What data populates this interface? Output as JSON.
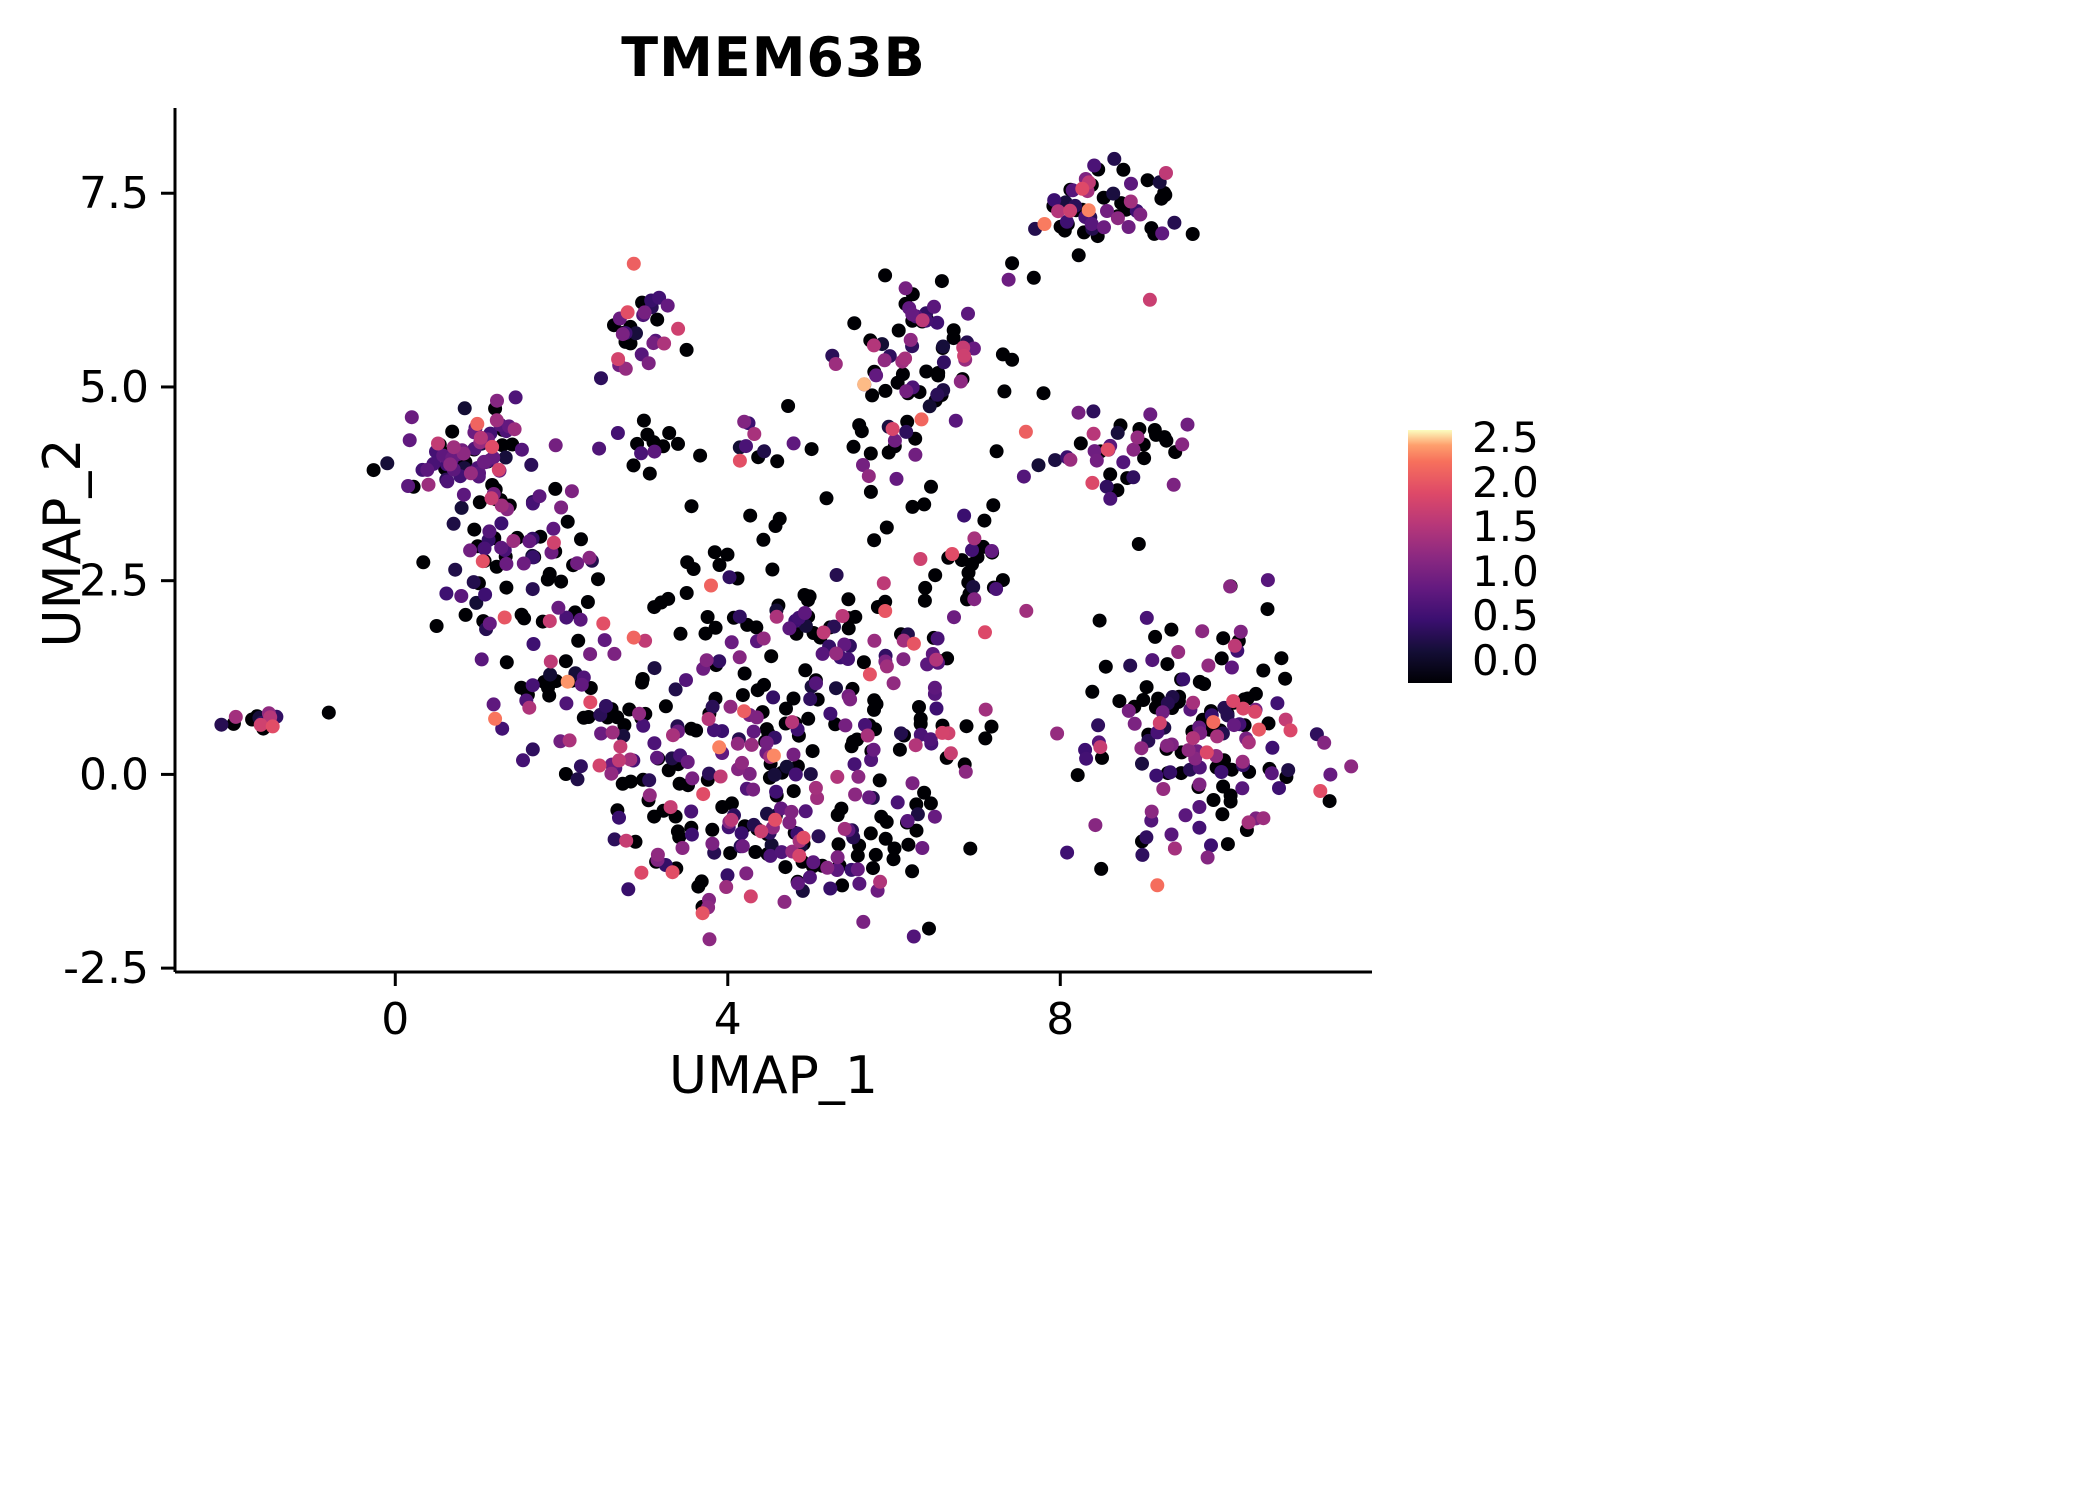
{
  "chart_data": {
    "type": "scatter",
    "title": "TMEM63B",
    "xlabel": "UMAP_1",
    "ylabel": "UMAP_2",
    "xlim": [
      -2.65,
      11.75
    ],
    "ylim": [
      -2.55,
      8.6
    ],
    "x_ticks": [
      {
        "value": 0,
        "label": "0"
      },
      {
        "value": 4,
        "label": "4"
      },
      {
        "value": 8,
        "label": "8"
      }
    ],
    "y_ticks": [
      {
        "value": -2.5,
        "label": "-2.5"
      },
      {
        "value": 0,
        "label": "0.0"
      },
      {
        "value": 2.5,
        "label": "2.5"
      },
      {
        "value": 5,
        "label": "5.0"
      },
      {
        "value": 7.5,
        "label": "7.5"
      }
    ],
    "legend": {
      "ticks": [
        "2.5",
        "2.0",
        "1.5",
        "1.0",
        "0.5",
        "0.0"
      ],
      "vmin": 0.0,
      "vmax": 2.6
    },
    "colormap": {
      "name": "magma",
      "stops": [
        {
          "t": 0.0,
          "c": "#000004"
        },
        {
          "t": 0.125,
          "c": "#140e36"
        },
        {
          "t": 0.25,
          "c": "#3b0f70"
        },
        {
          "t": 0.375,
          "c": "#641a80"
        },
        {
          "t": 0.5,
          "c": "#8c2981"
        },
        {
          "t": 0.625,
          "c": "#b73779"
        },
        {
          "t": 0.75,
          "c": "#de4968"
        },
        {
          "t": 0.875,
          "c": "#f7705c"
        },
        {
          "t": 0.94,
          "c": "#fe9f6d"
        },
        {
          "t": 1.0,
          "c": "#fcfdbf"
        }
      ]
    },
    "point_radius": 7,
    "seed": 12345,
    "clusters": [
      {
        "cx": -1.62,
        "cy": 0.68,
        "sx": 0.2,
        "sy": 0.1,
        "n": 16,
        "z": 0.3
      },
      {
        "cx": -0.8,
        "cy": 0.8,
        "sx": 0.02,
        "sy": 0.02,
        "n": 1,
        "z": 1.0
      },
      {
        "cx": 0.95,
        "cy": 4.15,
        "sx": 0.45,
        "sy": 0.33,
        "n": 72,
        "z": 0.34
      },
      {
        "cx": 1.25,
        "cy": 3.2,
        "sx": 0.4,
        "sy": 0.38,
        "n": 44,
        "z": 0.38
      },
      {
        "cx": 1.05,
        "cy": 2.55,
        "sx": 0.3,
        "sy": 0.25,
        "n": 12,
        "z": 0.45
      },
      {
        "cx": 1.75,
        "cy": 1.5,
        "sx": 0.45,
        "sy": 0.5,
        "n": 46,
        "z": 0.42
      },
      {
        "cx": 2.2,
        "cy": 2.5,
        "sx": 0.3,
        "sy": 0.3,
        "n": 14,
        "z": 0.5
      },
      {
        "cx": 2.9,
        "cy": 5.65,
        "sx": 0.27,
        "sy": 0.32,
        "n": 30,
        "z": 0.33
      },
      {
        "cx": 3.35,
        "cy": 4.3,
        "sx": 0.48,
        "sy": 0.17,
        "n": 13,
        "z": 0.78
      },
      {
        "cx": 4.45,
        "cy": 4.3,
        "sx": 0.27,
        "sy": 0.17,
        "n": 12,
        "z": 0.45
      },
      {
        "cx": 4.55,
        "cy": 0.55,
        "sx": 1.0,
        "sy": 0.82,
        "n": 150,
        "z": 0.42
      },
      {
        "cx": 4.85,
        "cy": -1.05,
        "sx": 0.92,
        "sy": 0.46,
        "n": 112,
        "z": 0.34
      },
      {
        "cx": 3.05,
        "cy": 0.1,
        "sx": 0.52,
        "sy": 0.65,
        "n": 52,
        "z": 0.42
      },
      {
        "cx": 4.65,
        "cy": 2.05,
        "sx": 0.92,
        "sy": 0.38,
        "n": 38,
        "z": 0.55
      },
      {
        "cx": 6.35,
        "cy": 1.05,
        "sx": 0.42,
        "sy": 0.9,
        "n": 44,
        "z": 0.45
      },
      {
        "cx": 6.85,
        "cy": 2.7,
        "sx": 0.28,
        "sy": 0.38,
        "n": 20,
        "z": 0.5
      },
      {
        "cx": 6.3,
        "cy": 5.4,
        "sx": 0.4,
        "sy": 0.46,
        "n": 68,
        "z": 0.3
      },
      {
        "cx": 5.9,
        "cy": 4.1,
        "sx": 0.28,
        "sy": 0.42,
        "n": 16,
        "z": 0.5
      },
      {
        "cx": 8.55,
        "cy": 7.4,
        "sx": 0.46,
        "sy": 0.28,
        "n": 54,
        "z": 0.4
      },
      {
        "cx": 8.7,
        "cy": 4.2,
        "sx": 0.4,
        "sy": 0.38,
        "n": 40,
        "z": 0.45
      },
      {
        "cx": 9.75,
        "cy": 0.55,
        "sx": 0.7,
        "sy": 0.8,
        "n": 158,
        "z": 0.45
      },
      {
        "cx": 5.6,
        "cy": 3.3,
        "sx": 1.35,
        "sy": 0.7,
        "n": 20,
        "z": 0.85
      },
      {
        "cx": 7.8,
        "cy": 5.6,
        "sx": 0.55,
        "sy": 0.65,
        "n": 6,
        "z": 0.5
      },
      {
        "cx": 8.6,
        "cy": 6.4,
        "sx": 0.45,
        "sy": 0.35,
        "n": 5,
        "z": 0.5
      },
      {
        "cx": 8.3,
        "cy": -0.9,
        "sx": 0.25,
        "sy": 0.25,
        "n": 4,
        "z": 0.4
      }
    ]
  }
}
